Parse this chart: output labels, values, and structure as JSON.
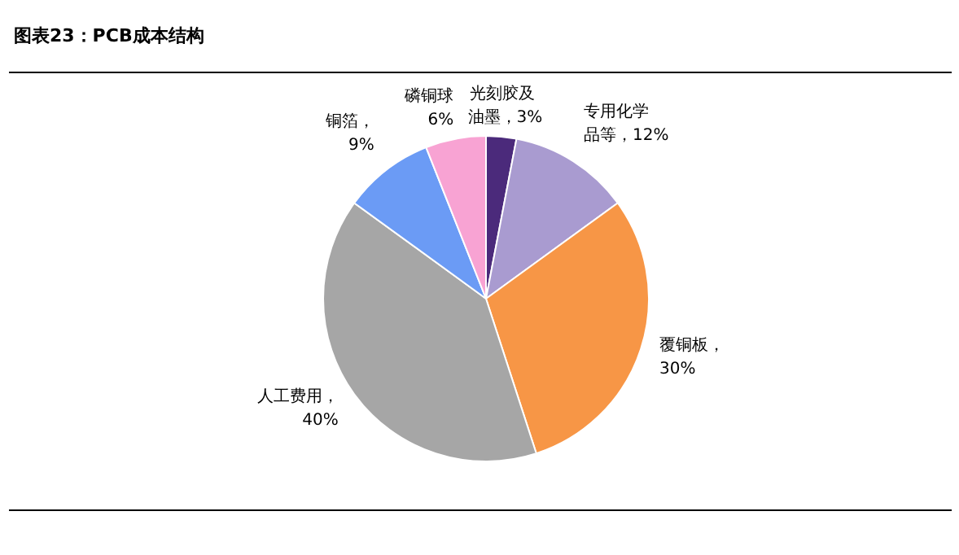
{
  "chart_data": {
    "type": "pie",
    "title": "图表23：PCB成本结构",
    "categories": [
      "光刻胶及油墨",
      "专用化学品等",
      "覆铜板",
      "人工费用",
      "铜箔",
      "磷铜球"
    ],
    "values": [
      3,
      12,
      30,
      40,
      9,
      6
    ],
    "value_labels": [
      "，3%",
      "，12%",
      "，30%",
      "，40%",
      "，9%",
      "6%"
    ],
    "colors": [
      "#4b2a7b",
      "#a99bd0",
      "#f79646",
      "#a6a6a6",
      "#6b9bf5",
      "#f8a3d3"
    ]
  }
}
